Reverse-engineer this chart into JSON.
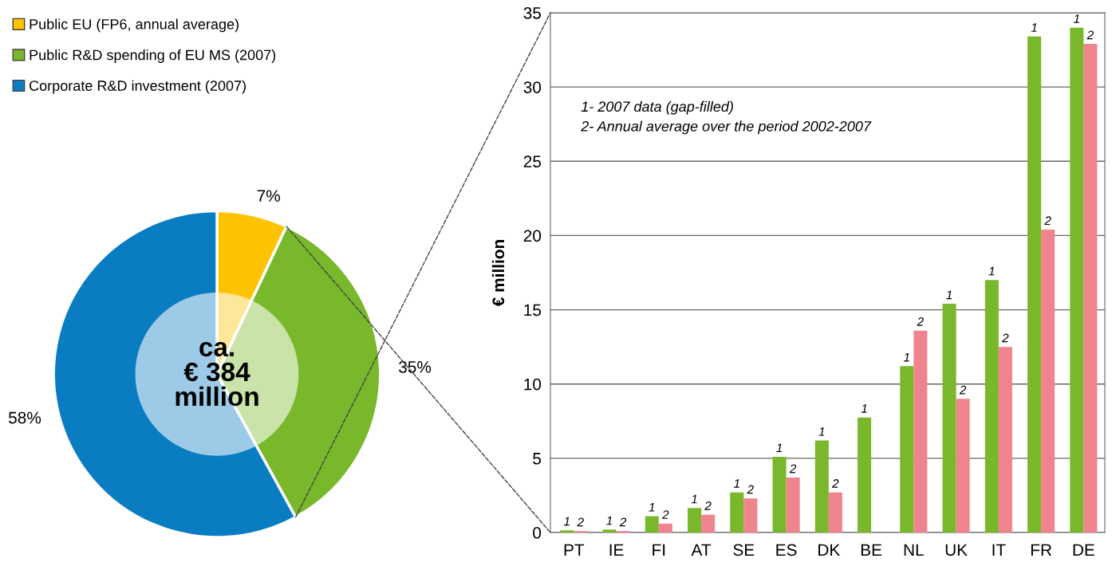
{
  "chart_data": [
    {
      "type": "donut",
      "categories": [
        "Public EU (FP6, annual average)",
        "Public R&D spending of EU MS (2007)",
        "Corporate R&D investment (2007)"
      ],
      "values": [
        7,
        35,
        58
      ],
      "colors": [
        "#fdc300",
        "#78b82a",
        "#0a7dc2"
      ],
      "value_labels": [
        "7%",
        "35%",
        "58%"
      ],
      "legend": "top left",
      "annotations": [
        "ca.\n€ 384\nmillion"
      ]
    },
    {
      "type": "bar",
      "categories": [
        "PT",
        "IE",
        "FI",
        "AT",
        "SE",
        "ES",
        "DK",
        "BE",
        "NL",
        "UK",
        "IT",
        "FR",
        "DE"
      ],
      "ylabel": "€ million",
      "ylim": [
        0,
        35
      ],
      "yticks": [
        0,
        5,
        10,
        15,
        20,
        25,
        30,
        35
      ],
      "grid": "y",
      "series": [
        {
          "name": "1",
          "color": "#78b82a",
          "values": [
            0.15,
            0.2,
            1.1,
            1.65,
            2.7,
            5.1,
            6.2,
            7.75,
            11.2,
            15.4,
            17.0,
            33.4,
            34.0
          ]
        },
        {
          "name": "2",
          "color": "#f0848e",
          "values": [
            0.1,
            0.1,
            0.6,
            1.2,
            2.3,
            3.7,
            2.7,
            null,
            13.6,
            9.0,
            12.5,
            20.4,
            32.9
          ]
        }
      ],
      "annotations": [
        "1- 2007 data (gap-filled)\n2- Annual average over the period 2002-2007"
      ]
    }
  ]
}
